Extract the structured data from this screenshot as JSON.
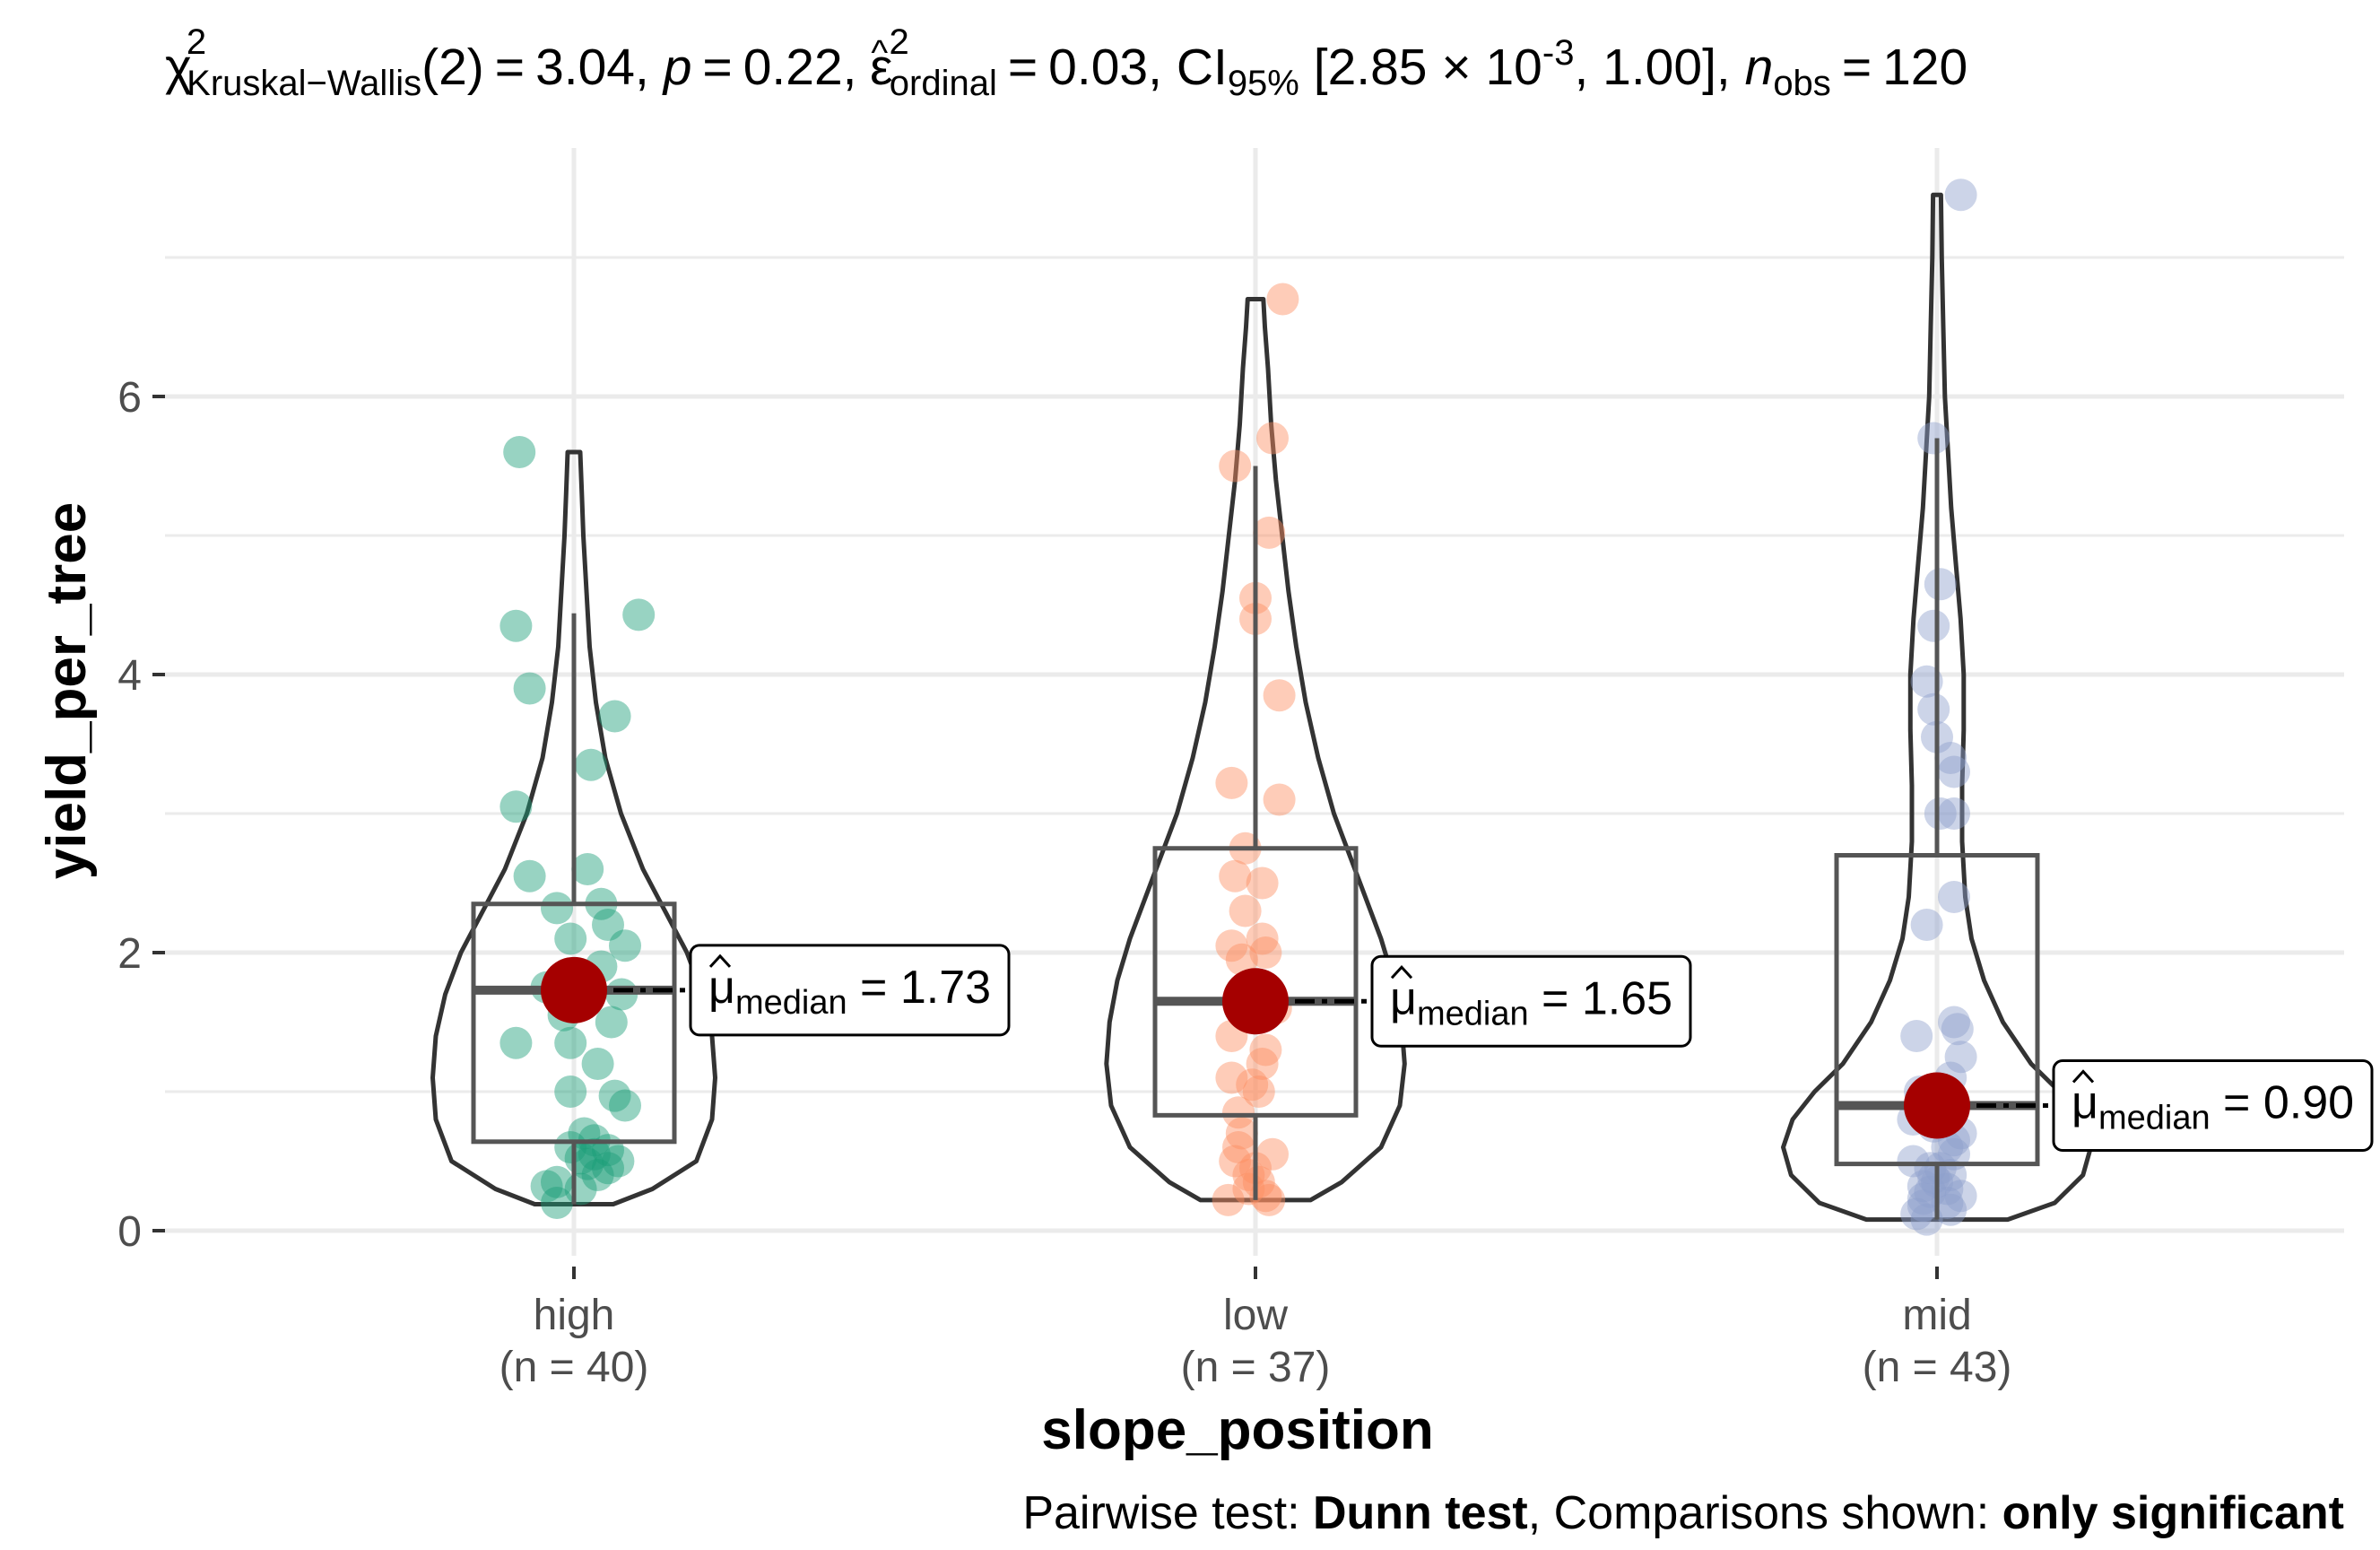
{
  "chart_data": {
    "type": "violin-box",
    "subtitle": {
      "chi_symbol": "χ",
      "sup2": "2",
      "test_subscript": "Kruskal−Wallis",
      "df_text": "(2)",
      "eq": "=",
      "statistic": "3.04",
      "p_symbol": "p",
      "p_value": "0.22",
      "eps_symbol": "ε",
      "eps_hat": "^",
      "eps_subscript": "ordinal",
      "eps_value": "0.03",
      "ci_label": "CI",
      "ci_subscript": "95%",
      "ci_low": "2.85 × 10",
      "ci_low_exp": "-3",
      "ci_high": "1.00",
      "n_symbol": "n",
      "n_subscript": "obs",
      "n_value": "120"
    },
    "xlabel": "slope_position",
    "ylabel": "yield_per_tree",
    "ylim": [
      -0.2,
      7.6
    ],
    "yticks": [
      0,
      2,
      4,
      6
    ],
    "grid": true,
    "caption": {
      "prefix": "Pairwise test: ",
      "test": "Dunn test",
      "middle": ", Comparisons shown: ",
      "shown": "only significant"
    },
    "median_symbol": "μ",
    "median_subscript": "median",
    "groups": [
      {
        "name": "high",
        "n_label": "(n = 40)",
        "color": "#1B9E77",
        "median": 1.73,
        "median_label": "1.73",
        "box": {
          "q1": 0.64,
          "median": 1.73,
          "q3": 2.35,
          "whisker_low": 0.19,
          "whisker_high": 4.44
        },
        "violin": {
          "ymin": 0.19,
          "ymax": 5.6,
          "y": [
            0.19,
            0.3,
            0.5,
            0.8,
            1.1,
            1.4,
            1.7,
            2.0,
            2.3,
            2.6,
            3.0,
            3.4,
            3.8,
            4.2,
            4.6,
            5.0,
            5.3,
            5.6
          ],
          "w": [
            0.25,
            0.5,
            0.78,
            0.88,
            0.9,
            0.88,
            0.82,
            0.72,
            0.58,
            0.44,
            0.3,
            0.2,
            0.14,
            0.1,
            0.08,
            0.06,
            0.05,
            0.04
          ]
        },
        "points": [
          5.6,
          4.43,
          4.35,
          3.9,
          3.7,
          3.35,
          3.05,
          2.6,
          2.55,
          2.35,
          2.32,
          2.2,
          2.1,
          2.05,
          1.9,
          1.75,
          1.7,
          1.68,
          1.55,
          1.5,
          1.35,
          1.35,
          1.2,
          1.0,
          0.97,
          0.9,
          0.7,
          0.65,
          0.6,
          0.58,
          0.55,
          0.52,
          0.5,
          0.48,
          0.45,
          0.4,
          0.35,
          0.32,
          0.3,
          0.2
        ],
        "jitter": [
          -0.16,
          0.19,
          -0.17,
          -0.13,
          0.12,
          0.05,
          -0.17,
          0.04,
          -0.13,
          0.08,
          -0.05,
          0.1,
          -0.01,
          0.15,
          0.08,
          -0.08,
          0.14,
          0.04,
          -0.03,
          0.11,
          -0.17,
          -0.01,
          0.07,
          -0.01,
          0.12,
          0.15,
          0.03,
          0.06,
          -0.01,
          0.1,
          0.06,
          0.02,
          0.13,
          0.04,
          0.1,
          0.07,
          -0.05,
          -0.08,
          0.02,
          -0.05
        ]
      },
      {
        "name": "low",
        "n_label": "(n = 37)",
        "color": "#FC8D62",
        "median": 1.65,
        "median_label": "1.65",
        "box": {
          "q1": 0.83,
          "median": 1.65,
          "q3": 2.75,
          "whisker_low": 0.22,
          "whisker_high": 5.5
        },
        "violin": {
          "ymin": 0.22,
          "ymax": 6.7,
          "y": [
            0.22,
            0.35,
            0.6,
            0.9,
            1.2,
            1.5,
            1.8,
            2.1,
            2.4,
            2.7,
            3.0,
            3.4,
            3.8,
            4.2,
            4.6,
            5.0,
            5.4,
            5.8,
            6.2,
            6.5,
            6.7
          ],
          "w": [
            0.35,
            0.55,
            0.8,
            0.92,
            0.95,
            0.93,
            0.88,
            0.8,
            0.7,
            0.6,
            0.5,
            0.4,
            0.32,
            0.26,
            0.21,
            0.17,
            0.13,
            0.1,
            0.08,
            0.06,
            0.05
          ]
        },
        "points": [
          6.7,
          5.7,
          5.5,
          5.02,
          4.55,
          4.4,
          3.85,
          3.22,
          3.1,
          2.75,
          2.55,
          2.5,
          2.3,
          2.1,
          2.05,
          2.0,
          1.95,
          1.7,
          1.6,
          1.4,
          1.3,
          1.2,
          1.1,
          1.05,
          1.0,
          0.85,
          0.7,
          0.6,
          0.55,
          0.5,
          0.45,
          0.4,
          0.35,
          0.3,
          0.25,
          0.22,
          0.22
        ],
        "jitter": [
          0.08,
          0.05,
          -0.06,
          0.04,
          0.0,
          0.0,
          0.07,
          -0.07,
          0.07,
          -0.03,
          -0.06,
          0.02,
          -0.03,
          0.02,
          -0.07,
          0.03,
          -0.04,
          -0.03,
          0.06,
          -0.07,
          0.03,
          0.02,
          -0.07,
          -0.01,
          0.01,
          -0.05,
          -0.04,
          -0.05,
          0.05,
          -0.06,
          0.0,
          -0.02,
          0.01,
          -0.02,
          0.03,
          -0.08,
          0.04
        ]
      },
      {
        "name": "mid",
        "n_label": "(n = 43)",
        "color": "#8DA0CB",
        "median": 0.9,
        "median_label": "0.90",
        "box": {
          "q1": 0.48,
          "median": 0.9,
          "q3": 2.7,
          "whisker_low": 0.08,
          "whisker_high": 5.7
        },
        "violin": {
          "ymin": 0.08,
          "ymax": 7.45,
          "y": [
            0.08,
            0.2,
            0.4,
            0.6,
            0.8,
            1.0,
            1.2,
            1.5,
            1.8,
            2.1,
            2.4,
            2.8,
            3.2,
            3.6,
            4.0,
            4.4,
            4.8,
            5.2,
            5.6,
            6.0,
            6.5,
            7.0,
            7.45
          ],
          "w": [
            0.45,
            0.75,
            0.93,
            0.98,
            0.92,
            0.78,
            0.6,
            0.42,
            0.3,
            0.22,
            0.18,
            0.16,
            0.16,
            0.17,
            0.17,
            0.15,
            0.12,
            0.09,
            0.07,
            0.05,
            0.04,
            0.03,
            0.025
          ]
        },
        "points": [
          7.45,
          5.7,
          4.65,
          4.35,
          3.95,
          3.75,
          3.55,
          3.4,
          3.3,
          3.0,
          3.0,
          2.4,
          2.2,
          1.5,
          1.45,
          1.4,
          1.25,
          1.1,
          1.0,
          0.9,
          0.85,
          0.8,
          0.75,
          0.7,
          0.65,
          0.6,
          0.55,
          0.5,
          0.45,
          0.45,
          0.4,
          0.38,
          0.35,
          0.32,
          0.3,
          0.28,
          0.25,
          0.23,
          0.2,
          0.18,
          0.15,
          0.12,
          0.08
        ],
        "jitter": [
          0.07,
          -0.01,
          0.01,
          -0.01,
          -0.03,
          -0.01,
          0.0,
          0.04,
          0.05,
          0.01,
          0.05,
          0.05,
          -0.03,
          0.05,
          0.06,
          -0.06,
          0.07,
          0.04,
          -0.05,
          0.03,
          0.04,
          -0.07,
          -0.01,
          0.07,
          0.05,
          0.03,
          0.05,
          -0.07,
          0.01,
          -0.02,
          0.04,
          -0.01,
          0.0,
          -0.04,
          0.03,
          -0.02,
          0.07,
          -0.04,
          0.03,
          -0.04,
          0.04,
          -0.06,
          -0.03
        ]
      }
    ]
  }
}
